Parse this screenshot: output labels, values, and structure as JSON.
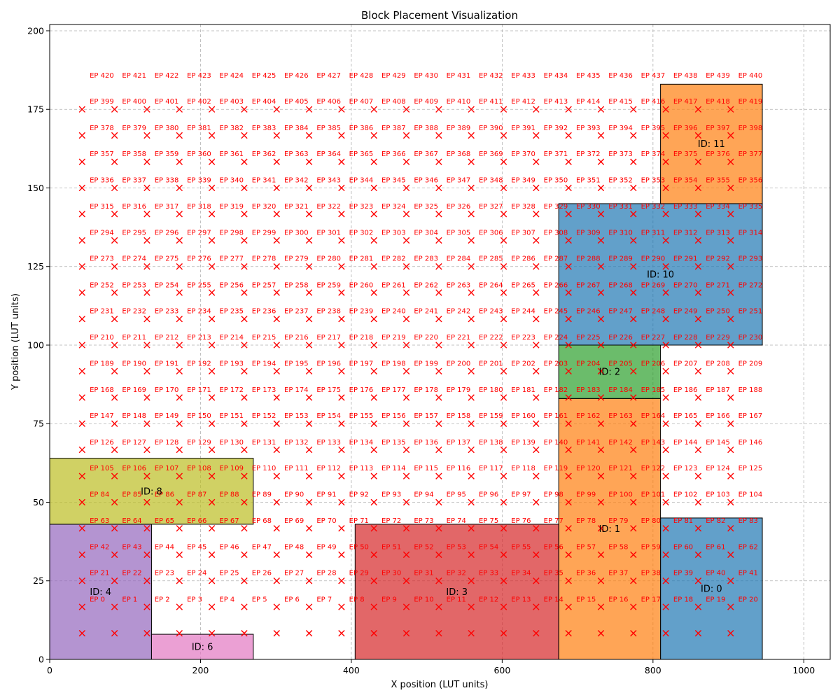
{
  "chart_data": {
    "type": "scatter",
    "title": "Block Placement Visualization",
    "xlabel": "X position (LUT units)",
    "ylabel": "Y position (LUT units)",
    "xlim": [
      0,
      1035
    ],
    "ylim": [
      0,
      202
    ],
    "x_ticks": [
      0,
      200,
      400,
      600,
      800,
      1000
    ],
    "y_ticks": [
      0,
      25,
      50,
      75,
      100,
      125,
      150,
      175,
      200
    ],
    "grid": true,
    "blocks": [
      {
        "label": "ID: 0",
        "x0": 810,
        "y0": 0,
        "x1": 945,
        "y1": 45,
        "color": "#1f77b4"
      },
      {
        "label": "ID: 1",
        "x0": 675,
        "y0": 0,
        "x1": 810,
        "y1": 83,
        "color": "#ff7f0e"
      },
      {
        "label": "ID: 2",
        "x0": 675,
        "y0": 83,
        "x1": 810,
        "y1": 100,
        "color": "#2ca02c"
      },
      {
        "label": "ID: 3",
        "x0": 405,
        "y0": 0,
        "x1": 675,
        "y1": 43,
        "color": "#d62728"
      },
      {
        "label": "ID: 4",
        "x0": 0,
        "y0": 0,
        "x1": 135,
        "y1": 43,
        "color": "#9467bd"
      },
      {
        "label": "ID: 6",
        "x0": 135,
        "y0": 0,
        "x1": 270,
        "y1": 8,
        "color": "#e377c2"
      },
      {
        "label": "ID: 8",
        "x0": 0,
        "y0": 43,
        "x1": 270,
        "y1": 64,
        "color": "#bcbd22"
      },
      {
        "label": "ID: 10",
        "x0": 675,
        "y0": 100,
        "x1": 945,
        "y1": 145,
        "color": "#1f77b4"
      },
      {
        "label": "ID: 11",
        "x0": 810,
        "y0": 145,
        "x1": 945,
        "y1": 183,
        "color": "#ff7f0e"
      }
    ],
    "marker_x": [
      43,
      86,
      129,
      172,
      215,
      258,
      301,
      344,
      387,
      430,
      473,
      516,
      559,
      602,
      645,
      688,
      731,
      774,
      817,
      860,
      903
    ],
    "marker_y": [
      8.3,
      16.7,
      25,
      33.3,
      41.7,
      50,
      58.3,
      66.7,
      75,
      83.3,
      91.7,
      100,
      108.3,
      116.7,
      125,
      133.3,
      141.7,
      150,
      158.3,
      166.7,
      175
    ],
    "ep_x": [
      53,
      96,
      139,
      182,
      225,
      268,
      311,
      354,
      397,
      440,
      483,
      526,
      569,
      612,
      655,
      698,
      741,
      784,
      827,
      870,
      913
    ],
    "ep_y": [
      19.2,
      27.6,
      35.9,
      44.2,
      52.6,
      60.9,
      69.2,
      77.6,
      85.9,
      94.2,
      102.6,
      110.9,
      119.2,
      127.6,
      135.9,
      144.2,
      152.6,
      160.9,
      169.2,
      177.6,
      185.9
    ],
    "ep_prefix": "EP ",
    "ep_count": 441,
    "marker_color": "#ff0000"
  }
}
